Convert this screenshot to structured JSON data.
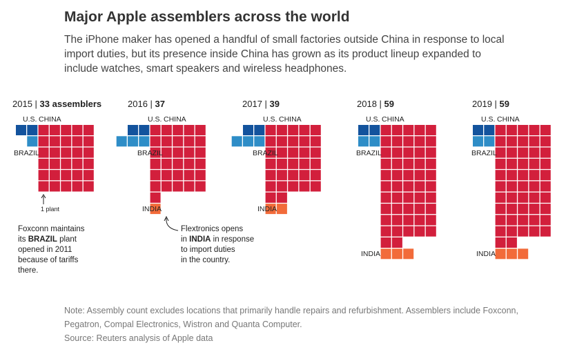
{
  "header": {
    "title": "Major Apple assemblers across the world",
    "subtitle": "The iPhone maker has opened a handful of small factories outside China in response to local import duties, but its presence inside China has grown as its product lineup expanded to include watches, smart speakers and wireless headphones."
  },
  "chart_data": {
    "type": "waffle",
    "colors": {
      "us": "#13539d",
      "brazil": "#2e8dc7",
      "china": "#d21f3c",
      "india": "#f26b3a"
    },
    "panels": [
      {
        "year": "2015",
        "sep": " | ",
        "total_label": "33 assemblers",
        "total": 33,
        "us": 2,
        "brazil": 1,
        "china": 30,
        "india": 0
      },
      {
        "year": "2016",
        "sep": " | ",
        "total_label": "37",
        "total": 37,
        "us": 2,
        "brazil": 3,
        "china": 31,
        "india": 1
      },
      {
        "year": "2017",
        "sep": " | ",
        "total_label": "39",
        "total": 39,
        "us": 2,
        "brazil": 3,
        "china": 32,
        "india": 2
      },
      {
        "year": "2018",
        "sep": " | ",
        "total_label": "59",
        "total": 59,
        "us": 2,
        "brazil": 2,
        "china": 52,
        "india": 3
      },
      {
        "year": "2019",
        "sep": " | ",
        "total_label": "59",
        "total": 59,
        "us": 2,
        "brazil": 2,
        "china": 52,
        "india": 3
      }
    ],
    "labels": {
      "us": "U.S.",
      "china": "CHINA",
      "brazil": "BRAZIL",
      "india": "INDIA"
    }
  },
  "annotations": {
    "plant_key": "1 plant",
    "brazil_note": {
      "l1": "Foxconn maintains",
      "l2a": "its ",
      "l2b": "BRAZIL",
      "l2c": " plant",
      "l3": "opened in 2011",
      "l4": "because of tariffs",
      "l5": "there."
    },
    "india_note": {
      "l1": "Flextronics opens",
      "l2a": "in ",
      "l2b": "INDIA",
      "l2c": " in response",
      "l3": "to import duties",
      "l4": "in the country."
    }
  },
  "footer": {
    "note_line1": "Note: Assembly count excludes locations that primarily handle repairs and refurbishment. Assemblers include Foxconn,",
    "note_line2": "Pegatron, Compal Electronics, Wistron and Quanta Computer.",
    "source": "Source: Reuters analysis of Apple data"
  }
}
